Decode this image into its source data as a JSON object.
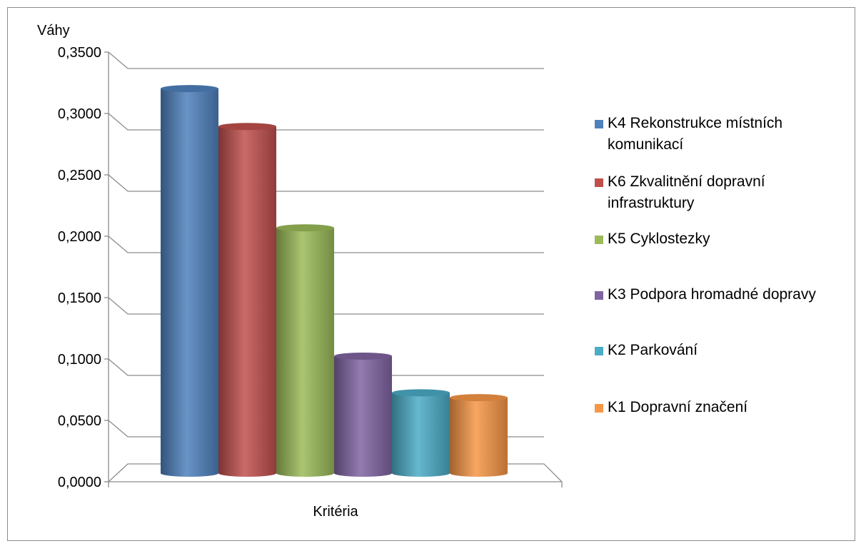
{
  "chart_data": {
    "type": "bar",
    "ylabel": "Váhy",
    "xlabel": "Kritéria",
    "ylim": [
      0,
      0.35
    ],
    "y_ticks": [
      "0,0000",
      "0,0500",
      "0,1000",
      "0,1500",
      "0,2000",
      "0,2500",
      "0,3000",
      "0,3500"
    ],
    "grid": true,
    "legend_position": "right",
    "categories": [
      "Kritéria"
    ],
    "series": [
      {
        "name": "K4 Rekonstrukce místních komunikací",
        "values": [
          0.309
        ],
        "color": "#4f81bd"
      },
      {
        "name": "K6 Zkvalitnění dopravní infrastruktury",
        "values": [
          0.278
        ],
        "color": "#c0504d"
      },
      {
        "name": "K5 Cyklostezky",
        "values": [
          0.195
        ],
        "color": "#9bbb59"
      },
      {
        "name": "K3 Podpora hromadné dopravy",
        "values": [
          0.09
        ],
        "color": "#8064a2"
      },
      {
        "name": "K2 Parkování",
        "values": [
          0.06
        ],
        "color": "#4bacc6"
      },
      {
        "name": "K1 Dopravní značení",
        "values": [
          0.056
        ],
        "color": "#f79646"
      }
    ]
  }
}
